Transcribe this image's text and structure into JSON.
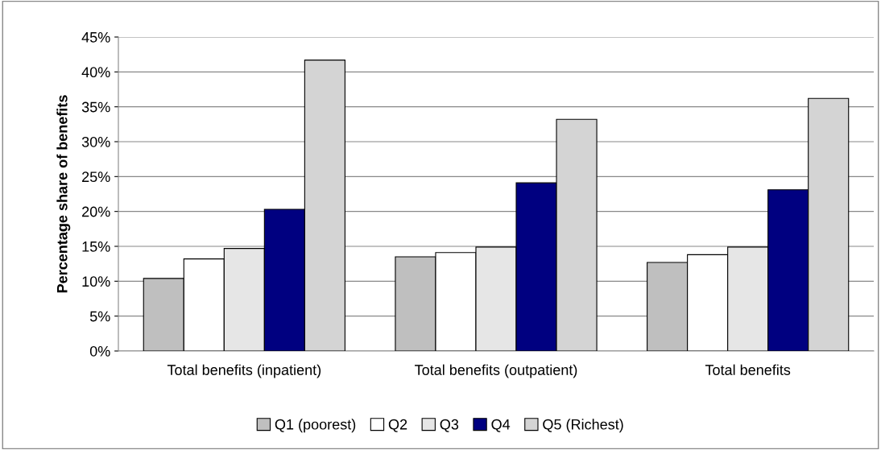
{
  "chart_data": {
    "type": "bar",
    "ylabel": "Percentage share of benefits",
    "categories": [
      "Total benefits (inpatient)",
      "Total benefits (outpatient)",
      "Total benefits"
    ],
    "series": [
      {
        "name": "Q1 (poorest)",
        "color": "#bfbfbf",
        "values": [
          10.4,
          13.5,
          12.7
        ]
      },
      {
        "name": "Q2",
        "color": "#ffffff",
        "values": [
          13.2,
          14.1,
          13.8
        ]
      },
      {
        "name": "Q3",
        "color": "#e6e6e6",
        "values": [
          14.7,
          14.9,
          14.9
        ]
      },
      {
        "name": "Q4",
        "color": "#000080",
        "values": [
          20.3,
          24.1,
          23.1
        ]
      },
      {
        "name": "Q5 (Richest)",
        "color": "#d4d4d4",
        "values": [
          41.7,
          33.2,
          36.2
        ]
      }
    ],
    "ylim": [
      0,
      45
    ],
    "yticks": [
      {
        "value": 0,
        "label": "0%"
      },
      {
        "value": 5,
        "label": "5%"
      },
      {
        "value": 10,
        "label": "10%"
      },
      {
        "value": 15,
        "label": "15%"
      },
      {
        "value": 20,
        "label": "20%"
      },
      {
        "value": 25,
        "label": "25%"
      },
      {
        "value": 30,
        "label": "30%"
      },
      {
        "value": 35,
        "label": "35%"
      },
      {
        "value": 40,
        "label": "40%"
      },
      {
        "value": 45,
        "label": "45%"
      }
    ],
    "grid": "y",
    "legend": "bottom"
  }
}
